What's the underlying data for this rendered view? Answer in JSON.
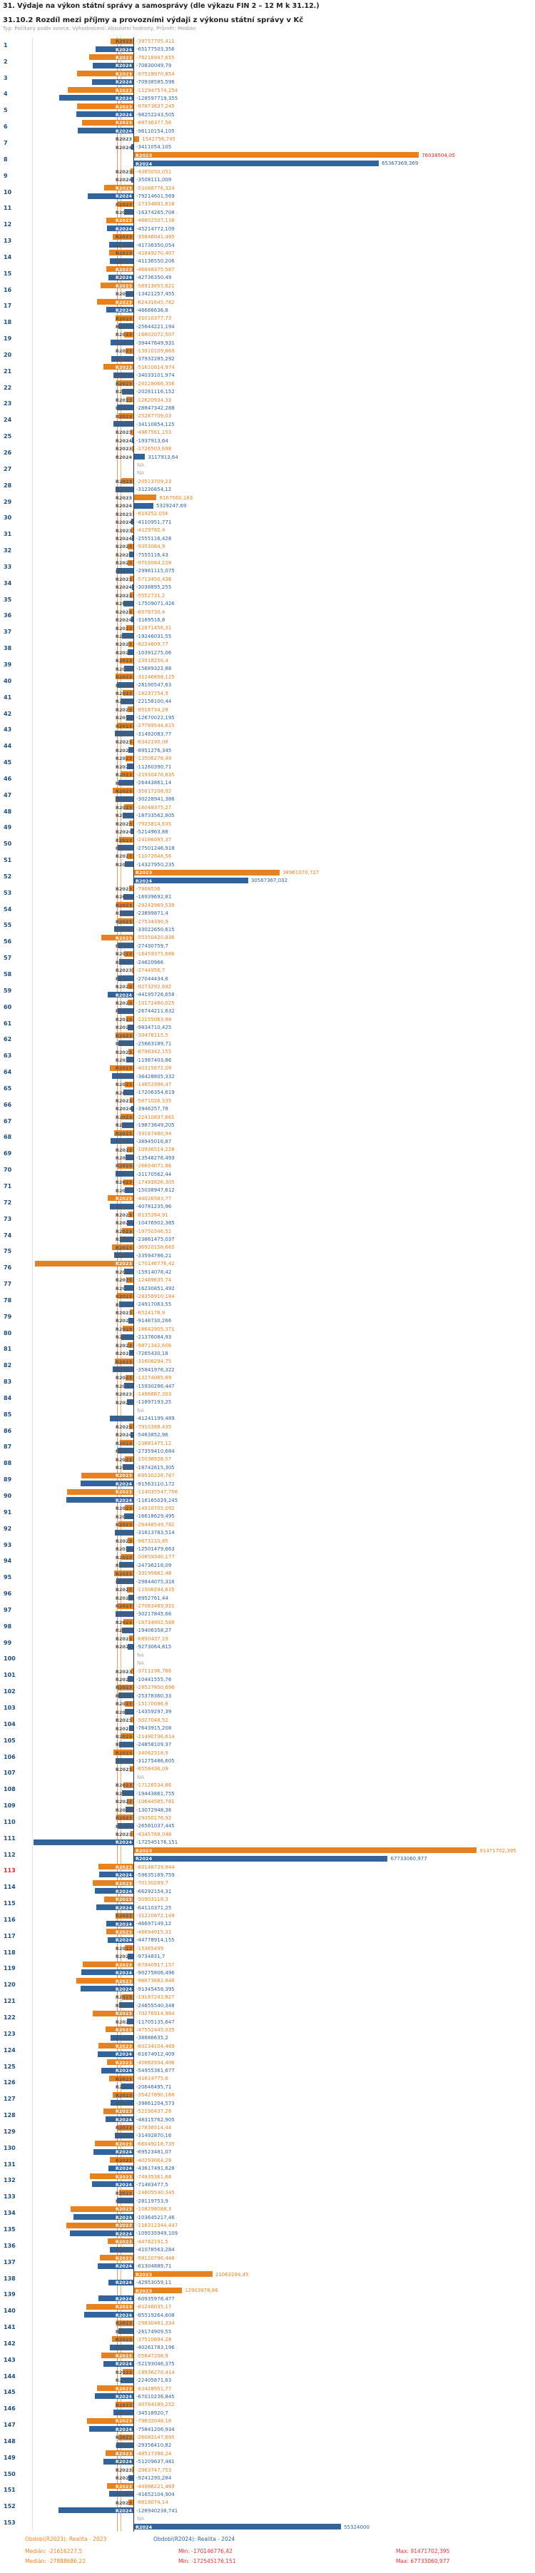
{
  "header": {
    "title": "31. Výdaje na výkon státní správy a samosprávy (dle výkazu FIN 2 – 12 M k 31.12.)",
    "subtitle": "31.10.2 Rozdíl mezi příjmy a provozními výdaji z výkonu státní správy v Kč",
    "meta": "Typ: Počítaný podle vzorce, Vyhodnocení: Absolutní hodnoty, Průměr: Medián"
  },
  "footer": {
    "period_2023": "Období(R2023): Realita - 2023",
    "period_2024": "Období(R2024): Realita - 2024",
    "stats_2023": {
      "median": "Medián: -21616227,5",
      "min": "Min: -170146776,42",
      "max": "Max: 91471702,395"
    },
    "stats_2024": {
      "median": "Medián: -27888686,22",
      "min": "Min: -172545176,151",
      "max": "Max: 67733060,977"
    }
  },
  "chart_data": {
    "type": "bar",
    "orientation": "horizontal",
    "unit": "Kč",
    "title": "31.10.2 Rozdíl mezi příjmy a provozními výdaji z výkonu státní správy v Kč",
    "series_names": [
      "R2023",
      "R2024"
    ],
    "series_colors": {
      "R2023": "#e8821e",
      "R2024": "#31639c"
    },
    "number_format": "decimal comma, values in Kč",
    "x_axis": {
      "min_hint": -175000000,
      "max_hint": 95000000,
      "zero_line": true
    },
    "medians": {
      "R2023": -21616227.5,
      "R2024": -27888686.22
    },
    "mins": {
      "R2023": -170146776.42,
      "R2024": -172545176.151
    },
    "maxs": {
      "R2023": 91471702.395,
      "R2024": 67733060.977
    },
    "rows": [
      {
        "n": 1,
        "r2023": "-39757705,411",
        "r2024": "-65177503,356"
      },
      {
        "n": 2,
        "r2023": "-76218947,655",
        "r2024": "-70830049,79"
      },
      {
        "n": 3,
        "r2023": "-97528970,854",
        "r2024": "-70938585,596"
      },
      {
        "n": 4,
        "r2023": "-112947574,254",
        "r2024": "-128597719,355"
      },
      {
        "n": 5,
        "r2023": "-97873637,245",
        "r2024": "-98252243,505"
      },
      {
        "n": 6,
        "r2023": "-88736377,56",
        "r2024": "-96110154,105"
      },
      {
        "n": 7,
        "r2023": "1542756,745",
        "r2024": "-3411054,105"
      },
      {
        "n": 8,
        "r2023": "76038504,05",
        "r2024": "65367369,369",
        "red2023": true
      },
      {
        "n": 9,
        "r2023": "-4365050,051",
        "r2024": "-3508111,009"
      },
      {
        "n": 10,
        "r2023": "-51088776,324",
        "r2024": "-79214601,569"
      },
      {
        "n": 11,
        "r2023": "-27334891,618",
        "r2024": "-16374265,708"
      },
      {
        "n": 12,
        "r2023": "-46802507,116",
        "r2024": "-45214772,109"
      },
      {
        "n": 13,
        "r2023": "-35846041,495",
        "r2024": "-41736350,054"
      },
      {
        "n": 14,
        "r2023": "-41849270,407",
        "r2024": "-41136550,206"
      },
      {
        "n": 15,
        "r2023": "-46848375,587",
        "r2024": "-42736350,49"
      },
      {
        "n": 16,
        "r2023": "-56913855,621",
        "r2024": "-13421257,455"
      },
      {
        "n": 17,
        "r2023": "-62431645,782",
        "r2024": "-46686636,8"
      },
      {
        "n": 18,
        "r2023": "-31010377,73",
        "r2024": "-25644221,194"
      },
      {
        "n": 19,
        "r2023": "-16602072,507",
        "r2024": "-39447649,931"
      },
      {
        "n": 20,
        "r2023": "-13910109,869",
        "r2024": "-37932285,292"
      },
      {
        "n": 21,
        "r2023": "-51610814,974",
        "r2024": "-34033101,974"
      },
      {
        "n": 22,
        "r2023": "-29228066,356",
        "r2024": "-20261116,152"
      },
      {
        "n": 23,
        "r2023": "-12620934,33",
        "r2024": "-28847342,288"
      },
      {
        "n": 24,
        "r2023": "-25267709,03",
        "r2024": "-34110854,125"
      },
      {
        "n": 25,
        "r2023": "-4967561,153",
        "r2024": "-1937913,64"
      },
      {
        "n": 26,
        "r2023": "-2726503,698",
        "r2024": "3117913,64"
      },
      {
        "n": 27,
        "r2023": "NA",
        "r2024": "NA"
      },
      {
        "n": 28,
        "r2023": "-20513709,23",
        "r2024": "-31230854,12"
      },
      {
        "n": 29,
        "r2023": "6167560,183",
        "r2024": "5329247,69"
      },
      {
        "n": 30,
        "r2023": "-619252,056",
        "r2024": "-4110951,771"
      },
      {
        "n": 31,
        "r2023": "-4129782,4",
        "r2024": "-2555116,428"
      },
      {
        "n": 32,
        "r2023": "-9353064,9",
        "r2024": "-7555116,43"
      },
      {
        "n": 33,
        "r2023": "-9703064,228",
        "r2024": "-29961115,075"
      },
      {
        "n": 34,
        "r2023": "-5713450,438",
        "r2024": "-3038895,255"
      },
      {
        "n": 35,
        "r2023": "-5552731,2",
        "r2024": "-17509071,426"
      },
      {
        "n": 36,
        "r2023": "-6978730,4",
        "r2024": "-3169516,8"
      },
      {
        "n": 37,
        "r2023": "-12871456,31",
        "r2024": "-19246031,55"
      },
      {
        "n": 38,
        "r2023": "-8224609,77",
        "r2024": "-10391275,06"
      },
      {
        "n": 39,
        "r2023": "-23918250,4",
        "r2024": "-15689322,88"
      },
      {
        "n": 40,
        "r2023": "-31246858,125",
        "r2024": "-28190547,63"
      },
      {
        "n": 41,
        "r2023": "-18237754,9",
        "r2024": "-22158100,44"
      },
      {
        "n": 42,
        "r2023": "-9516734,28",
        "r2024": "-12670022,195"
      },
      {
        "n": 43,
        "r2023": "-27789544,615",
        "r2024": "-31492083,77"
      },
      {
        "n": 44,
        "r2023": "-6342190,08",
        "r2024": "-8951276,345"
      },
      {
        "n": 45,
        "r2023": "-13508276,49",
        "r2024": "-11260390,71"
      },
      {
        "n": 46,
        "r2023": "-21930476,835",
        "r2024": "-26443861,14"
      },
      {
        "n": 47,
        "r2023": "-35617208,92",
        "r2024": "-30228941,386"
      },
      {
        "n": 48,
        "r2023": "-16049375,27",
        "r2024": "-18733562,805"
      },
      {
        "n": 49,
        "r2023": "-7925814,635",
        "r2024": "-5214963,88"
      },
      {
        "n": 50,
        "r2023": "-24186095,37",
        "r2024": "-27501246,918"
      },
      {
        "n": 51,
        "r2023": "-11072648,56",
        "r2024": "-14327950,235"
      },
      {
        "n": 52,
        "r2023": "38961070,727",
        "r2024": "30567367,032"
      },
      {
        "n": 53,
        "r2023": "-7908536",
        "r2024": "-16939692,81"
      },
      {
        "n": 54,
        "r2023": "-29242969,539",
        "r2024": "-23899871,4"
      },
      {
        "n": 55,
        "r2023": "-27534390,9",
        "r2024": "-33022650,615"
      },
      {
        "n": 56,
        "r2023": "-55350420,836",
        "r2024": "-27430759,7"
      },
      {
        "n": 57,
        "r2023": "-16459375,666",
        "r2024": "-24620966"
      },
      {
        "n": 58,
        "r2023": "-2744956,7",
        "r2024": "-27044434,6"
      },
      {
        "n": 59,
        "r2023": "-9273292,692",
        "r2024": "-44195726,658"
      },
      {
        "n": 60,
        "r2023": "-10172480,025",
        "r2024": "-26744211,632"
      },
      {
        "n": 61,
        "r2023": "-12155063,88",
        "r2024": "-9834710,425"
      },
      {
        "n": 62,
        "r2023": "-30478115,5",
        "r2024": "-25663189,71"
      },
      {
        "n": 63,
        "r2023": "-8796342,155",
        "r2024": "-11987403,86"
      },
      {
        "n": 64,
        "r2023": "-40315672,09",
        "r2024": "-36428805,332"
      },
      {
        "n": 65,
        "r2023": "-14652998,47",
        "r2024": "-17206354,619"
      },
      {
        "n": 66,
        "r2023": "-5871026,335",
        "r2024": "-3946257,78"
      },
      {
        "n": 67,
        "r2023": "-22410837,661",
        "r2024": "-19873649,205"
      },
      {
        "n": 68,
        "r2023": "-33167480,94",
        "r2024": "-38945016,87"
      },
      {
        "n": 69,
        "r2023": "-10936514,228",
        "r2024": "-13548276,493"
      },
      {
        "n": 70,
        "r2023": "-26854071,86",
        "r2024": "-31170562,44"
      },
      {
        "n": 71,
        "r2023": "-17493826,305",
        "r2024": "-15038947,612"
      },
      {
        "n": 72,
        "r2023": "-44026583,77",
        "r2024": "-40781235,96"
      },
      {
        "n": 73,
        "r2023": "-8135264,91",
        "r2024": "-10476902,385"
      },
      {
        "n": 74,
        "r2023": "-19750346,52",
        "r2024": "-23861475,037"
      },
      {
        "n": 75,
        "r2023": "-36920158,665",
        "r2024": "-33594786,21"
      },
      {
        "n": 76,
        "r2023": "-170146776,42",
        "r2024": "-15914078,42"
      },
      {
        "n": 77,
        "r2023": "-12489635,74",
        "r2024": "-16230851,492"
      },
      {
        "n": 78,
        "r2023": "-28356910,184",
        "r2024": "-24917063,55"
      },
      {
        "n": 79,
        "r2023": "-6524178,9",
        "r2024": "-9148730,266"
      },
      {
        "n": 80,
        "r2023": "-18642905,371",
        "r2024": "-21376084,93"
      },
      {
        "n": 81,
        "r2023": "-9871342,606",
        "r2024": "-7265430,18"
      },
      {
        "n": 82,
        "r2023": "-31608294,75",
        "r2024": "-35841976,322"
      },
      {
        "n": 83,
        "r2023": "-13274065,89",
        "r2024": "-15930286,447"
      },
      {
        "n": 84,
        "r2023": "-1496667,303",
        "r2024": "-11697193,25"
      },
      {
        "n": 85,
        "r2023": "NA",
        "r2024": "-41241199,489"
      },
      {
        "n": 86,
        "r2023": "-7910268,435",
        "r2024": "-5463852,96"
      },
      {
        "n": 87,
        "r2023": "-23681475,12",
        "r2024": "-27359410,684"
      },
      {
        "n": 88,
        "r2023": "-15036928,57",
        "r2024": "-18742615,305"
      },
      {
        "n": 89,
        "r2023": "-89530226,767",
        "r2024": "-91563110,172"
      },
      {
        "n": 90,
        "r2023": "-114035547,756",
        "r2024": "-116165029,245"
      },
      {
        "n": 91,
        "r2023": "-14910705,092",
        "r2024": "-16618629,495"
      },
      {
        "n": 92,
        "r2023": "-26448549,782",
        "r2024": "-31613783,514"
      },
      {
        "n": 93,
        "r2023": "-9673210,85",
        "r2024": "-12501479,663"
      },
      {
        "n": 94,
        "r2023": "-20859340,177",
        "r2024": "-24736218,09"
      },
      {
        "n": 95,
        "r2023": "-33195662,48",
        "r2024": "-29844075,316"
      },
      {
        "n": 96,
        "r2023": "-11508294,635",
        "r2024": "-8952761,44"
      },
      {
        "n": 97,
        "r2023": "-27063489,921",
        "r2024": "-30217845,66"
      },
      {
        "n": 98,
        "r2023": "-16734902,588",
        "r2024": "-19406358,27"
      },
      {
        "n": 99,
        "r2023": "-6850437,19",
        "r2024": "-9273064,815"
      },
      {
        "n": 100,
        "r2023": "NA",
        "r2024": "NA"
      },
      {
        "n": 101,
        "r2023": "-3711196,786",
        "r2024": "-10441555,76"
      },
      {
        "n": 102,
        "r2023": "-28527850,696",
        "r2024": "-25378360,33"
      },
      {
        "n": 103,
        "r2023": "-15170096,8",
        "r2024": "-14359297,39"
      },
      {
        "n": 104,
        "r2023": "-5027048,52",
        "r2024": "-7643915,208"
      },
      {
        "n": 105,
        "r2023": "-21490736,614",
        "r2024": "-24858109,37"
      },
      {
        "n": 106,
        "r2023": "-34062518,9",
        "r2024": "-31275486,605"
      },
      {
        "n": 107,
        "r2023": "-6558436,09",
        "r2024": "NA"
      },
      {
        "n": 108,
        "r2023": "-17126534,86",
        "r2024": "-19443861,755"
      },
      {
        "n": 109,
        "r2023": "-10644585,781",
        "r2024": "-13072948,36"
      },
      {
        "n": 110,
        "r2023": "-29350176,92",
        "r2024": "-26581037,445"
      },
      {
        "n": 111,
        "r2023": "-4345768,048",
        "r2024": "-172545176,151"
      },
      {
        "n": 112,
        "r2023": "91471702,395",
        "r2024": "67733060,977"
      },
      {
        "n": 113,
        "r2023": "-60148739,844",
        "r2024": "-59635189,759",
        "red_n": true
      },
      {
        "n": 114,
        "r2023": "-70130289,7",
        "r2024": "-66292154,31"
      },
      {
        "n": 115,
        "r2023": "-50903118,3",
        "r2024": "-64110371,25"
      },
      {
        "n": 116,
        "r2023": "-31220872,149",
        "r2024": "-46697149,12"
      },
      {
        "n": 117,
        "r2023": "-46694915,31",
        "r2024": "-44778914,155"
      },
      {
        "n": 118,
        "r2023": "-15365499",
        "r2024": "-9734831,7"
      },
      {
        "n": 119,
        "r2023": "-87940917,157",
        "r2024": "-90275806,496"
      },
      {
        "n": 120,
        "r2023": "-98673682,848",
        "r2024": "-91345458,395"
      },
      {
        "n": 121,
        "r2023": "-19187243,827",
        "r2024": "-24655540,348"
      },
      {
        "n": 122,
        "r2023": "-70276914,964",
        "r2024": "-11705135,647"
      },
      {
        "n": 123,
        "r2023": "-47552445,035",
        "r2024": "-38886635,2"
      },
      {
        "n": 124,
        "r2023": "-60234104,469",
        "r2024": "-61674912,409"
      },
      {
        "n": 125,
        "r2023": "-45662934,406",
        "r2024": "-54955361,677"
      },
      {
        "n": 126,
        "r2023": "-41814775,8",
        "r2024": "-20646495,71"
      },
      {
        "n": 127,
        "r2023": "-35427890,166",
        "r2024": "-39861204,573"
      },
      {
        "n": 128,
        "r2023": "-52190437,28",
        "r2024": "-48315762,905"
      },
      {
        "n": 129,
        "r2023": "-27836514,44",
        "r2024": "-31492870,16"
      },
      {
        "n": 130,
        "r2023": "-66049218,735",
        "r2024": "-69523481,07"
      },
      {
        "n": 131,
        "r2023": "-40293064,29",
        "r2024": "-43617491,628"
      },
      {
        "n": 132,
        "r2023": "-74935361,68",
        "r2024": "-71483477,5"
      },
      {
        "n": 133,
        "r2023": "-24605540,345",
        "r2024": "-28119753,9"
      },
      {
        "n": 134,
        "r2023": "-108298088,3",
        "r2024": "-103645217,46"
      },
      {
        "n": 135,
        "r2023": "-116312344,447",
        "r2024": "-109535949,109"
      },
      {
        "n": 136,
        "r2023": "-44762191,5",
        "r2024": "-41078563,284"
      },
      {
        "n": 137,
        "r2023": "-58120796,448",
        "r2024": "-61304889,71"
      },
      {
        "n": 138,
        "r2023": "21063294,45",
        "r2024": "-42953059,11"
      },
      {
        "n": 139,
        "r2023": "12903978,86",
        "r2024": "-60935978,477"
      },
      {
        "n": 140,
        "r2023": "-81246035,17",
        "r2024": "-85519264,608"
      },
      {
        "n": 141,
        "r2023": "-29830461,334",
        "r2024": "-26174909,55"
      },
      {
        "n": 142,
        "r2023": "-37510694,28",
        "r2024": "-40261783,196"
      },
      {
        "n": 143,
        "r2023": "-55647208,9",
        "r2024": "-52193046,375"
      },
      {
        "n": 144,
        "r2023": "-18936270,414",
        "r2024": "-22405871,63"
      },
      {
        "n": 145,
        "r2023": "-63428951,77",
        "r2024": "-67010236,845"
      },
      {
        "n": 146,
        "r2023": "-30764189,252",
        "r2024": "-34518920,7"
      },
      {
        "n": 147,
        "r2023": "-79632048,16",
        "r2024": "-75841206,934"
      },
      {
        "n": 148,
        "r2023": "-26083147,695",
        "r2024": "-29356410,82"
      },
      {
        "n": 149,
        "r2023": "-48517396,24",
        "r2024": "-51209637,481"
      },
      {
        "n": 150,
        "r2023": "-2963747,753",
        "r2024": "-9241290,284"
      },
      {
        "n": 151,
        "r2023": "-44986221,463",
        "r2024": "-41652104,904"
      },
      {
        "n": 152,
        "r2023": "-8819074,14",
        "r2024": "-128940238,741"
      },
      {
        "n": 153,
        "r2023": "NA",
        "r2024": "55324000"
      }
    ]
  }
}
